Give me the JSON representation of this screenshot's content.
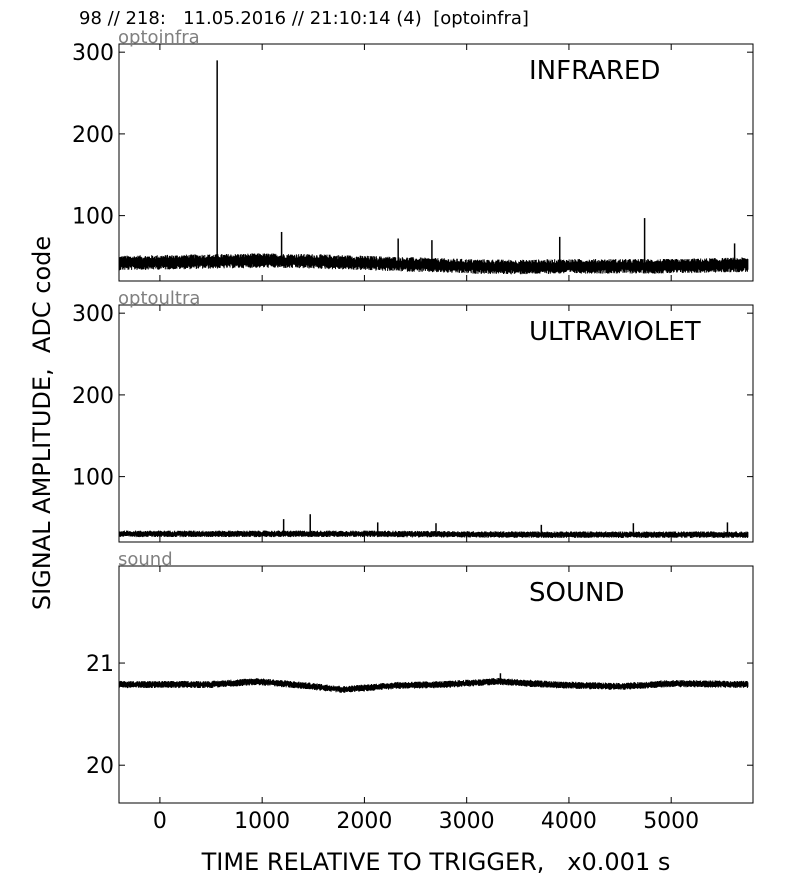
{
  "header": {
    "title": "98 // 218:   11.05.2016 // 21:10:14 (4)  [optoinfra]"
  },
  "axes": {
    "ylabel": "SIGNAL AMPLITUDE,  ADC code",
    "xlabel": "TIME RELATIVE TO TRIGGER,   x0.001 s"
  },
  "chart_data": [
    {
      "type": "line",
      "channel": "optoinfra",
      "title": "INFRARED",
      "xlim": [
        -400,
        5800
      ],
      "ylim": [
        20,
        310
      ],
      "xticks": [
        0,
        1000,
        2000,
        3000,
        4000,
        5000
      ],
      "yticks": [
        100,
        200,
        300
      ],
      "ytick_labels": [
        "100",
        "200",
        "300"
      ],
      "x_extent": [
        -400,
        5750
      ],
      "baseline": [
        [
          -400,
          42
        ],
        [
          1000,
          45
        ],
        [
          1500,
          44
        ],
        [
          2000,
          42
        ],
        [
          2500,
          40
        ],
        [
          3000,
          38
        ],
        [
          3500,
          37
        ],
        [
          4000,
          38
        ],
        [
          4500,
          38
        ],
        [
          5000,
          38
        ],
        [
          5750,
          40
        ]
      ],
      "noise_halfwidth": 9,
      "spikes": [
        [
          560,
          290
        ],
        [
          4740,
          97
        ],
        [
          1190,
          80
        ],
        [
          2330,
          72
        ],
        [
          2660,
          70
        ],
        [
          3910,
          74
        ],
        [
          5620,
          66
        ]
      ]
    },
    {
      "type": "line",
      "channel": "optoultra",
      "title": "ULTRAVIOLET",
      "xlim": [
        -400,
        5800
      ],
      "ylim": [
        20,
        310
      ],
      "xticks": [
        0,
        1000,
        2000,
        3000,
        4000,
        5000
      ],
      "yticks": [
        100,
        200,
        300
      ],
      "ytick_labels": [
        "100",
        "200",
        "300"
      ],
      "x_extent": [
        -400,
        5750
      ],
      "baseline": [
        [
          -400,
          30
        ],
        [
          2000,
          30
        ],
        [
          3500,
          29
        ],
        [
          5750,
          29
        ]
      ],
      "noise_halfwidth": 4,
      "spikes": [
        [
          1210,
          48
        ],
        [
          1470,
          54
        ],
        [
          2130,
          44
        ],
        [
          2700,
          43
        ],
        [
          3730,
          41
        ],
        [
          4630,
          43
        ],
        [
          5550,
          44
        ]
      ]
    },
    {
      "type": "line",
      "channel": "sound",
      "title": "SOUND",
      "xlim": [
        -400,
        5800
      ],
      "ylim": [
        19.63,
        21.95
      ],
      "xticks": [
        0,
        1000,
        2000,
        3000,
        4000,
        5000
      ],
      "yticks": [
        20,
        21
      ],
      "ytick_labels": [
        "20",
        "21"
      ],
      "x_extent": [
        -400,
        5750
      ],
      "baseline": [
        [
          -400,
          20.79
        ],
        [
          500,
          20.79
        ],
        [
          950,
          20.82
        ],
        [
          1300,
          20.79
        ],
        [
          1800,
          20.74
        ],
        [
          2300,
          20.78
        ],
        [
          2800,
          20.79
        ],
        [
          3300,
          20.82
        ],
        [
          3800,
          20.79
        ],
        [
          4500,
          20.77
        ],
        [
          5000,
          20.8
        ],
        [
          5750,
          20.79
        ]
      ],
      "noise_halfwidth": 0.035,
      "spikes": [
        [
          3330,
          20.9
        ]
      ]
    }
  ]
}
